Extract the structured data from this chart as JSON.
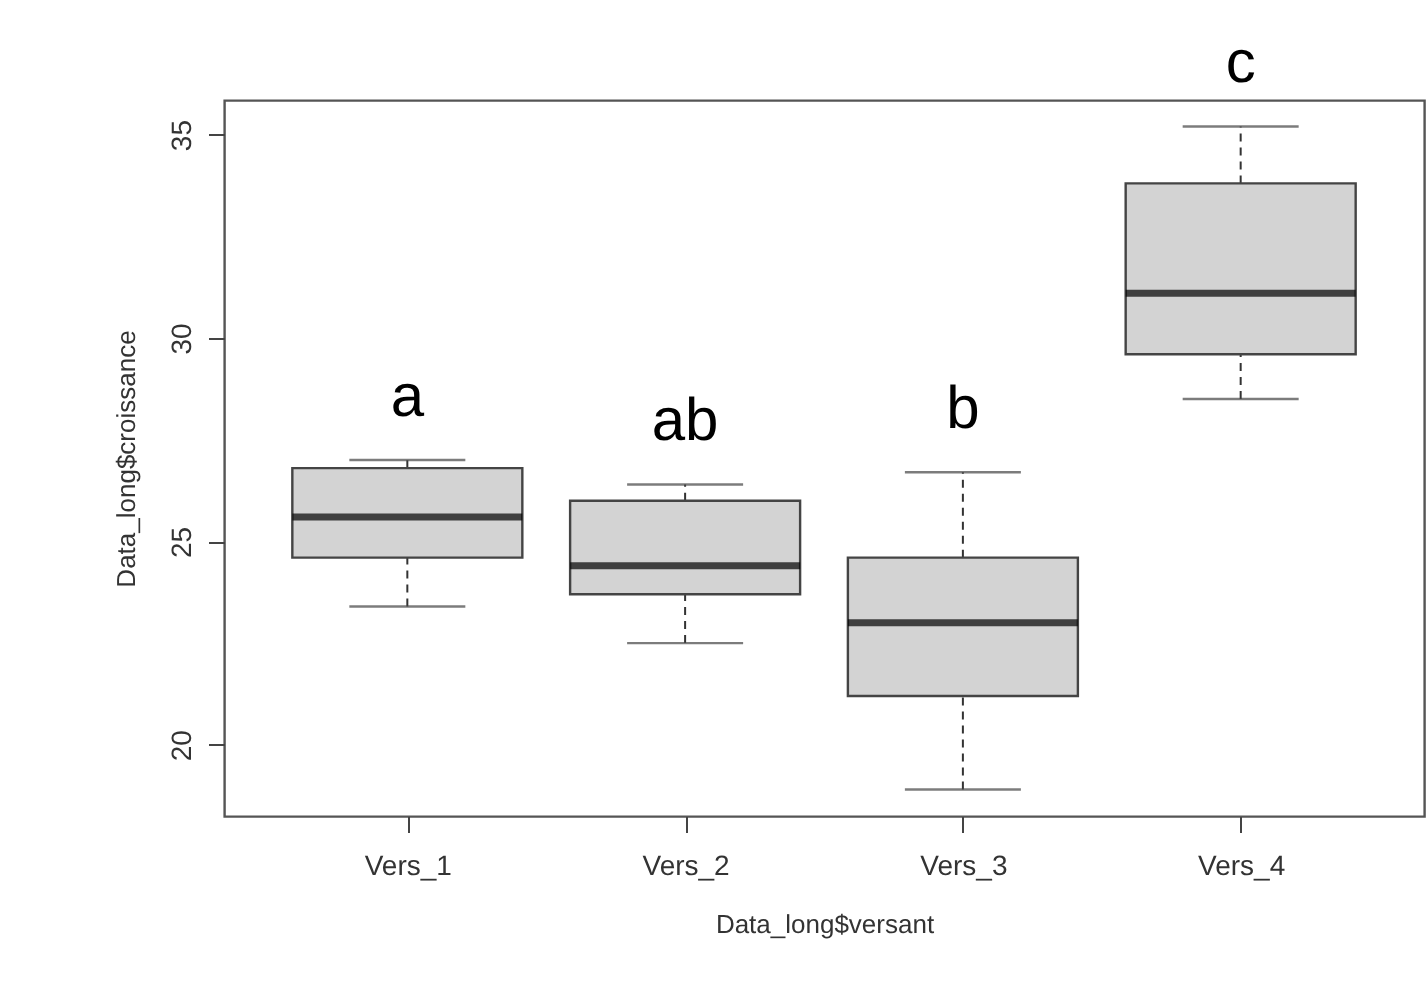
{
  "chart_data": {
    "type": "box",
    "xlabel": "Data_long$versant",
    "ylabel": "Data_long$croissance",
    "categories": [
      "Vers_1",
      "Vers_2",
      "Vers_3",
      "Vers_4"
    ],
    "boxes": [
      {
        "low": 23.4,
        "q1": 24.6,
        "median": 25.6,
        "q3": 26.8,
        "high": 27.0
      },
      {
        "low": 22.5,
        "q1": 23.7,
        "median": 24.4,
        "q3": 26.0,
        "high": 26.4
      },
      {
        "low": 18.9,
        "q1": 21.2,
        "median": 23.0,
        "q3": 24.6,
        "high": 26.7
      },
      {
        "low": 28.5,
        "q1": 29.6,
        "median": 31.1,
        "q3": 33.8,
        "high": 35.2
      }
    ],
    "ylim": [
      18.25,
      35.85
    ],
    "yticks": [
      20,
      25,
      30,
      35
    ],
    "grid": false,
    "annotations": [
      "a",
      "ab",
      "b",
      "c"
    ]
  }
}
